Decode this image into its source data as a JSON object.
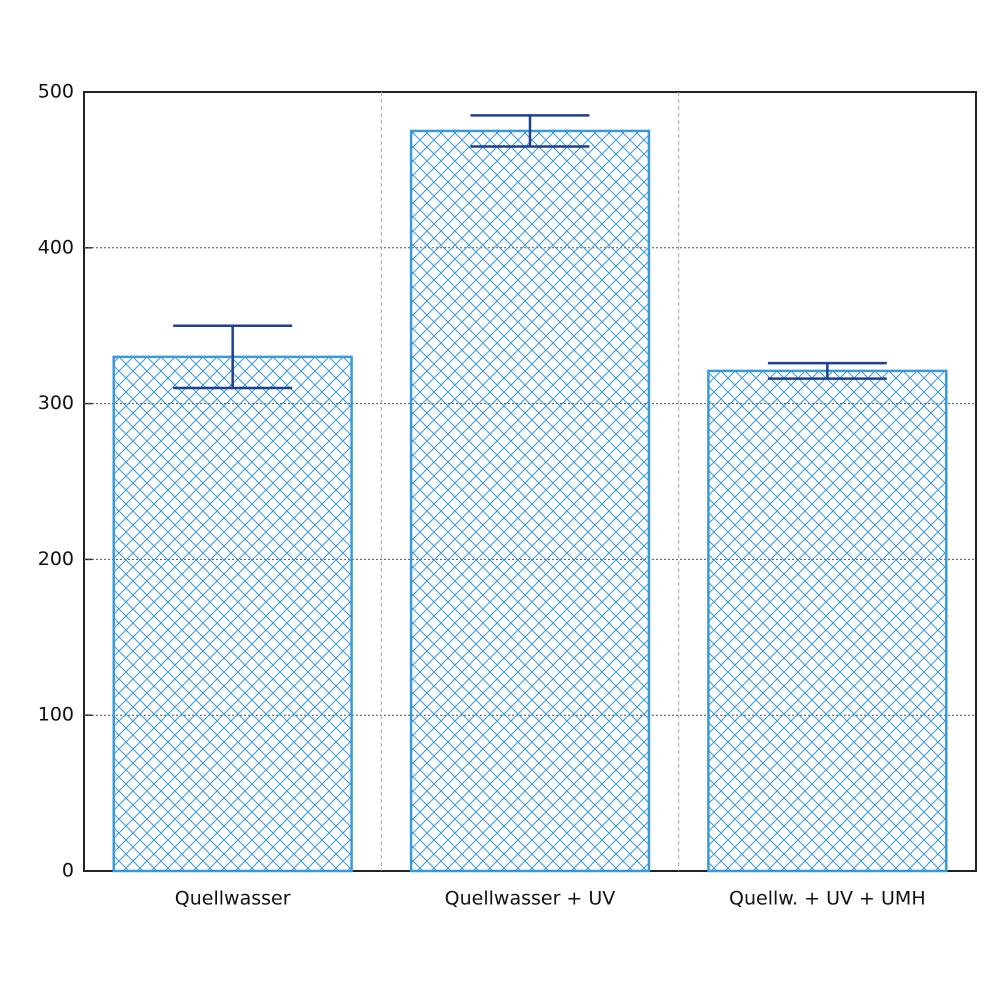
{
  "chart_data": {
    "type": "bar",
    "categories": [
      "Quellwasser",
      "Quellwasser + UV",
      "Quellw. + UV + UMH"
    ],
    "values": [
      330,
      475,
      321
    ],
    "errors": [
      20,
      10,
      5
    ],
    "color": "#3a9ad9",
    "error_color": "#1f3f8f",
    "ylim": [
      0,
      500
    ],
    "yticks": [
      0,
      100,
      200,
      300,
      400,
      500
    ],
    "grid": true
  }
}
